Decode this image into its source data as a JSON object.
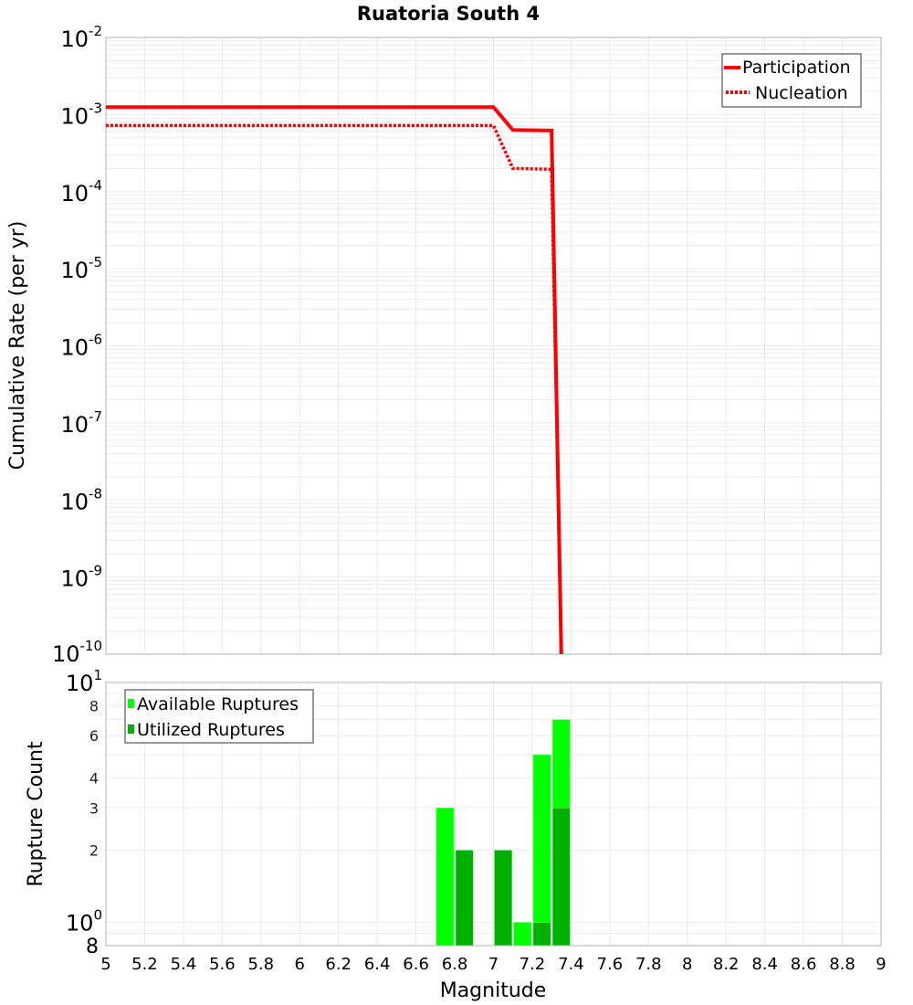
{
  "chart_data": [
    {
      "type": "line",
      "title": "Ruatoria South 4",
      "xlabel": "",
      "ylabel": "Cumulative Rate (per yr)",
      "yscale": "log",
      "ylim": [
        1e-10,
        0.01
      ],
      "xlim": [
        5,
        9
      ],
      "grid": true,
      "legend_position": "top-right",
      "y_tick_labels": [
        "10^-2",
        "10^-3",
        "10^-4",
        "10^-5",
        "10^-6",
        "10^-7",
        "10^-8",
        "10^-9",
        "10^-10"
      ],
      "series": [
        {
          "name": "Participation",
          "style": "solid",
          "color": "#ff0000",
          "x": [
            5.0,
            7.0,
            7.1,
            7.3,
            7.35
          ],
          "y": [
            0.00125,
            0.00125,
            0.00063,
            0.00062,
            1e-10
          ]
        },
        {
          "name": "Nucleation",
          "style": "dotted",
          "color": "#ff0000",
          "x": [
            5.0,
            7.0,
            7.1,
            7.3,
            7.35
          ],
          "y": [
            0.00072,
            0.00072,
            0.0002,
            0.000195,
            1e-10
          ]
        }
      ]
    },
    {
      "type": "bar",
      "title": "",
      "xlabel": "Magnitude",
      "ylabel": "Rupture Count",
      "yscale": "log",
      "ylim": [
        0.8,
        10
      ],
      "xlim": [
        5,
        9
      ],
      "grid": true,
      "legend_position": "top-left",
      "x_tick_labels": [
        "5",
        "5.2",
        "5.4",
        "5.6",
        "5.8",
        "6",
        "6.2",
        "6.4",
        "6.6",
        "6.8",
        "7",
        "7.2",
        "7.4",
        "7.6",
        "7.8",
        "8",
        "8.2",
        "8.4",
        "8.6",
        "8.8",
        "9"
      ],
      "y_tick_labels": [
        "8",
        "10^0",
        "2",
        "3",
        "4",
        "6",
        "8",
        "10^1"
      ],
      "bin_width": 0.1,
      "series": [
        {
          "name": "Available Ruptures",
          "color": "#00ff00",
          "bins": [
            6.7,
            7.1,
            7.2,
            7.3
          ],
          "values": [
            3,
            1,
            5,
            7
          ]
        },
        {
          "name": "Utilized Ruptures",
          "color": "#00b000",
          "bins": [
            6.8,
            7.0,
            7.2,
            7.3
          ],
          "values": [
            2,
            2,
            1,
            3
          ]
        }
      ]
    }
  ],
  "labels": {
    "title": "Ruatoria South 4",
    "top_ylabel": "Cumulative Rate (per yr)",
    "bottom_ylabel": "Rupture Count",
    "xlabel": "Magnitude",
    "legend_top": [
      "Participation",
      "Nucleation"
    ],
    "legend_bottom": [
      "Available Ruptures",
      "Utilized Ruptures"
    ]
  }
}
